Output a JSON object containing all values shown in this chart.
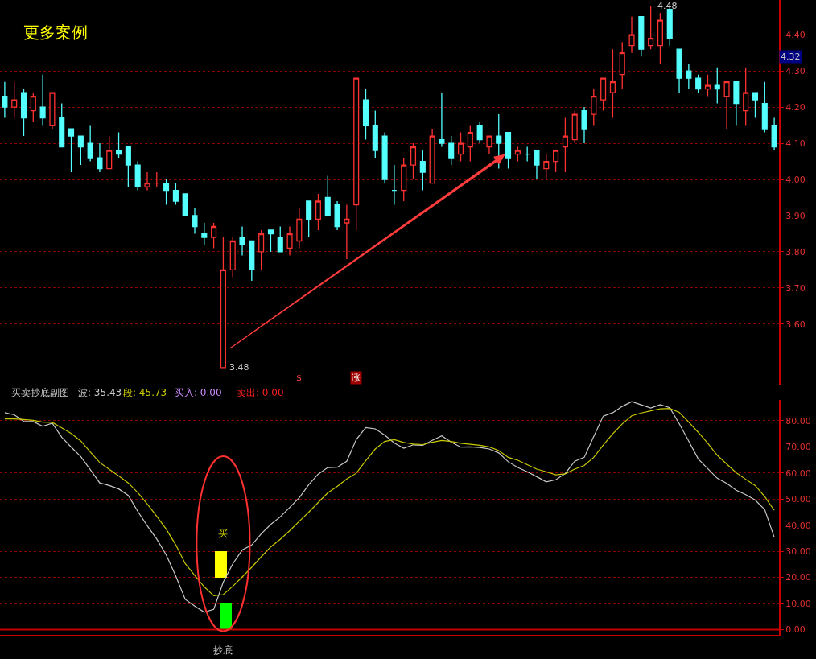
{
  "chart_data": [
    {
      "type": "candlestick",
      "title": "更多案例",
      "categories": [
        null,
        null,
        null,
        null,
        null,
        null,
        null,
        null,
        null,
        null,
        null,
        null,
        null,
        null,
        null,
        null,
        null,
        null,
        null,
        null,
        null,
        null,
        null,
        null,
        null,
        null,
        null,
        null,
        null,
        null,
        null,
        null,
        null,
        null,
        null,
        null,
        null,
        null,
        null,
        null,
        null,
        null,
        null,
        null,
        null,
        null,
        null,
        null,
        null,
        null,
        null,
        null,
        null,
        null,
        null,
        null,
        null,
        null,
        null,
        null,
        null,
        null,
        null,
        null,
        null,
        null,
        null,
        null,
        null,
        null,
        null,
        null,
        null,
        null,
        null,
        null,
        null,
        null,
        null,
        null,
        null,
        null
      ],
      "ohlc": [
        [
          4.23,
          4.27,
          4.17,
          4.2
        ],
        [
          4.2,
          4.27,
          4.17,
          4.22
        ],
        [
          4.24,
          4.25,
          4.12,
          4.17
        ],
        [
          4.19,
          4.24,
          4.16,
          4.23
        ],
        [
          4.2,
          4.29,
          4.15,
          4.17
        ],
        [
          4.15,
          4.24,
          4.14,
          4.24
        ],
        [
          4.17,
          4.21,
          4.09,
          4.09
        ],
        [
          4.14,
          4.14,
          4.02,
          4.12
        ],
        [
          4.12,
          4.12,
          4.04,
          4.09
        ],
        [
          4.1,
          4.15,
          4.05,
          4.06
        ],
        [
          4.06,
          4.1,
          4.02,
          4.03
        ],
        [
          4.03,
          4.12,
          4.03,
          4.08
        ],
        [
          4.08,
          4.13,
          4.06,
          4.07
        ],
        [
          4.09,
          4.09,
          3.98,
          4.04
        ],
        [
          4.04,
          4.05,
          3.97,
          3.98
        ],
        [
          3.98,
          4.02,
          3.97,
          3.99
        ],
        [
          3.99,
          4.02,
          3.98,
          3.99
        ],
        [
          3.99,
          4.0,
          3.93,
          3.97
        ],
        [
          3.97,
          3.99,
          3.93,
          3.94
        ],
        [
          3.96,
          3.96,
          3.9,
          3.9
        ],
        [
          3.9,
          3.92,
          3.85,
          3.87
        ],
        [
          3.85,
          3.88,
          3.82,
          3.84
        ],
        [
          3.84,
          3.88,
          3.81,
          3.87
        ],
        [
          3.48,
          3.84,
          3.48,
          3.75
        ],
        [
          3.75,
          3.84,
          3.73,
          3.83
        ],
        [
          3.84,
          3.87,
          3.79,
          3.82
        ],
        [
          3.83,
          3.83,
          3.72,
          3.75
        ],
        [
          3.8,
          3.86,
          3.75,
          3.85
        ],
        [
          3.86,
          3.86,
          3.8,
          3.85
        ],
        [
          3.84,
          3.87,
          3.8,
          3.8
        ],
        [
          3.81,
          3.87,
          3.79,
          3.85
        ],
        [
          3.83,
          3.92,
          3.81,
          3.89
        ],
        [
          3.94,
          3.94,
          3.84,
          3.89
        ],
        [
          3.89,
          3.96,
          3.86,
          3.94
        ],
        [
          3.95,
          4.01,
          3.9,
          3.9
        ],
        [
          3.93,
          3.94,
          3.86,
          3.87
        ],
        [
          3.88,
          3.93,
          3.78,
          3.89
        ],
        [
          3.93,
          4.28,
          3.86,
          4.28
        ],
        [
          4.22,
          4.25,
          4.11,
          4.15
        ],
        [
          4.15,
          4.19,
          4.06,
          4.08
        ],
        [
          4.12,
          4.13,
          3.99,
          4.0
        ],
        [
          3.97,
          4.04,
          3.93,
          3.97
        ],
        [
          3.97,
          4.06,
          3.94,
          4.04
        ],
        [
          4.04,
          4.1,
          4.0,
          4.09
        ],
        [
          4.05,
          4.08,
          3.97,
          4.02
        ],
        [
          3.99,
          4.14,
          3.99,
          4.12
        ],
        [
          4.11,
          4.24,
          4.09,
          4.1
        ],
        [
          4.1,
          4.12,
          4.04,
          4.06
        ],
        [
          4.07,
          4.13,
          4.05,
          4.1
        ],
        [
          4.09,
          4.15,
          4.05,
          4.13
        ],
        [
          4.15,
          4.16,
          4.1,
          4.11
        ],
        [
          4.09,
          4.12,
          4.07,
          4.12
        ],
        [
          4.12,
          4.18,
          4.03,
          4.1
        ],
        [
          4.13,
          4.13,
          4.03,
          4.06
        ],
        [
          4.07,
          4.09,
          4.05,
          4.08
        ],
        [
          4.07,
          4.09,
          4.05,
          4.07
        ],
        [
          4.08,
          4.08,
          4.0,
          4.04
        ],
        [
          4.03,
          4.07,
          4.0,
          4.05
        ],
        [
          4.05,
          4.08,
          4.02,
          4.08
        ],
        [
          4.09,
          4.17,
          4.02,
          4.12
        ],
        [
          4.11,
          4.19,
          4.1,
          4.18
        ],
        [
          4.19,
          4.2,
          4.1,
          4.14
        ],
        [
          4.18,
          4.25,
          4.15,
          4.23
        ],
        [
          4.22,
          4.28,
          4.19,
          4.28
        ],
        [
          4.24,
          4.36,
          4.17,
          4.27
        ],
        [
          4.29,
          4.38,
          4.25,
          4.35
        ],
        [
          4.37,
          4.45,
          4.35,
          4.4
        ],
        [
          4.45,
          4.45,
          4.34,
          4.36
        ],
        [
          4.37,
          4.48,
          4.36,
          4.39
        ],
        [
          4.37,
          4.46,
          4.32,
          4.44
        ],
        [
          4.47,
          4.47,
          4.37,
          4.39
        ],
        [
          4.36,
          4.36,
          4.24,
          4.28
        ],
        [
          4.3,
          4.32,
          4.25,
          4.28
        ],
        [
          4.28,
          4.29,
          4.24,
          4.25
        ],
        [
          4.25,
          4.29,
          4.23,
          4.26
        ],
        [
          4.26,
          4.31,
          4.21,
          4.25
        ],
        [
          4.23,
          4.27,
          4.14,
          4.27
        ],
        [
          4.27,
          4.27,
          4.15,
          4.21
        ],
        [
          4.19,
          4.31,
          4.15,
          4.24
        ],
        [
          4.24,
          4.24,
          4.17,
          4.22
        ],
        [
          4.21,
          4.27,
          4.13,
          4.14
        ],
        [
          4.15,
          4.17,
          4.08,
          4.09
        ]
      ],
      "ylim": [
        3.433,
        4.496
      ],
      "yticks": [
        {
          "value": 3.6,
          "label": "3.60"
        },
        {
          "value": 3.7,
          "label": "3.70"
        },
        {
          "value": 3.8,
          "label": "3.80"
        },
        {
          "value": 3.9,
          "label": "3.90"
        },
        {
          "value": 4.0,
          "label": "4.00"
        },
        {
          "value": 4.1,
          "label": "4.10"
        },
        {
          "value": 4.2,
          "label": "4.20"
        },
        {
          "value": 4.3,
          "label": "4.30"
        },
        {
          "value": 4.4,
          "label": "4.40"
        }
      ],
      "grid": "y",
      "tick_labels": "y",
      "annotations": [
        "$",
        "涨",
        "3.48",
        {
          "text": "4.48",
          "y": 4.48
        },
        "4.32"
      ]
    },
    {
      "type": "line",
      "title": "买卖抄底副图",
      "categories": [
        null,
        null,
        null,
        null,
        null,
        null,
        null,
        null,
        null,
        null,
        null,
        null,
        null,
        null,
        null,
        null,
        null,
        null,
        null,
        null,
        null,
        null,
        null,
        null,
        null,
        null,
        null,
        null,
        null,
        null,
        null,
        null,
        null,
        null,
        null,
        null,
        null,
        null,
        null,
        null,
        null,
        null,
        null,
        null,
        null,
        null,
        null,
        null,
        null,
        null,
        null,
        null,
        null,
        null,
        null,
        null,
        null,
        null,
        null,
        null,
        null,
        null,
        null,
        null,
        null,
        null,
        null,
        null,
        null,
        null,
        null,
        null,
        null,
        null,
        null,
        null,
        null,
        null,
        null,
        null,
        null,
        null
      ],
      "series": [
        {
          "name": "波: 35.43",
          "color": "#c8c8c8",
          "values": [
            83.1,
            82.3,
            79.8,
            79.7,
            77.9,
            79.1,
            73.7,
            69.9,
            66.3,
            61.3,
            56.2,
            55.2,
            53.9,
            51.4,
            45.3,
            39.8,
            34.7,
            28.6,
            20.6,
            11.6,
            9.0,
            6.7,
            7.8,
            18.2,
            25.2,
            30.5,
            32.4,
            36.7,
            40.3,
            43.2,
            46.8,
            50.5,
            55.5,
            59.6,
            62.1,
            62.2,
            64.5,
            72.8,
            77.4,
            76.9,
            74.5,
            71.5,
            69.5,
            70.8,
            70.6,
            72.5,
            74.2,
            71.8,
            69.9,
            70.0,
            69.8,
            69.2,
            67.7,
            64.3,
            62.1,
            60.5,
            58.6,
            56.6,
            57.4,
            59.8,
            64.5,
            66.0,
            74.0,
            81.8,
            83.1,
            85.5,
            87.3,
            86.1,
            84.9,
            86.2,
            85.0,
            78.9,
            72.2,
            65.4,
            61.7,
            58.0,
            56.0,
            53.4,
            51.7,
            49.6,
            46.0,
            35.4
          ]
        },
        {
          "name": "段: 45.73",
          "color": "#c8c800",
          "values": [
            80.7,
            80.7,
            80.5,
            80.2,
            79.5,
            79.4,
            77.3,
            75.1,
            72.3,
            68.1,
            64.0,
            61.4,
            58.9,
            56.2,
            52.5,
            48.1,
            43.4,
            38.5,
            32.5,
            25.3,
            20.8,
            16.4,
            13.0,
            13.4,
            16.6,
            20.2,
            23.9,
            27.9,
            31.7,
            34.6,
            37.9,
            41.5,
            45.0,
            48.7,
            52.4,
            54.9,
            57.7,
            59.9,
            64.7,
            69.2,
            72.1,
            72.8,
            71.7,
            71.1,
            70.9,
            71.8,
            72.5,
            72.1,
            71.4,
            71.0,
            70.6,
            70.0,
            68.6,
            66.0,
            64.9,
            63.2,
            61.5,
            60.5,
            59.3,
            59.7,
            61.5,
            62.9,
            66.0,
            70.7,
            75.0,
            78.8,
            81.9,
            83.0,
            83.8,
            84.6,
            84.7,
            83.2,
            79.5,
            75.6,
            71.4,
            66.8,
            63.4,
            60.1,
            57.6,
            55.2,
            51.0,
            45.7
          ]
        },
        {
          "type": "bar",
          "color": "#ffff00",
          "values": [
            null,
            null,
            null,
            null,
            null,
            null,
            null,
            null,
            null,
            null,
            null,
            null,
            null,
            null,
            null,
            null,
            null,
            null,
            null,
            null,
            null,
            null,
            null,
            10,
            null,
            null,
            null,
            null,
            null,
            null,
            null,
            null,
            null,
            null,
            null,
            null,
            null,
            null,
            null,
            null,
            null,
            null,
            null,
            null,
            null,
            null,
            null,
            null,
            null,
            null,
            null,
            null,
            null,
            null,
            null,
            null,
            null,
            null,
            null,
            null,
            null,
            null,
            null,
            null,
            null,
            null,
            null,
            null,
            null,
            null,
            null,
            null,
            null,
            null,
            null,
            null,
            null,
            null,
            null,
            null,
            null,
            null
          ],
          "base": [
            null,
            null,
            null,
            null,
            null,
            null,
            null,
            null,
            null,
            null,
            null,
            null,
            null,
            null,
            null,
            null,
            null,
            null,
            null,
            null,
            null,
            null,
            null,
            20,
            null,
            null,
            null,
            null,
            null,
            null,
            null,
            null,
            null,
            null,
            null,
            null,
            null,
            null,
            null,
            null,
            null,
            null,
            null,
            null,
            null,
            null,
            null,
            null,
            null,
            null,
            null,
            null,
            null,
            null,
            null,
            null,
            null,
            null,
            null,
            null,
            null,
            null,
            null,
            null,
            null,
            null,
            null,
            null,
            null,
            null,
            null,
            null,
            null,
            null,
            null,
            null,
            null,
            null,
            null,
            null,
            null,
            null
          ]
        },
        {
          "type": "bar",
          "color": "#00ff00",
          "values": [
            null,
            null,
            null,
            null,
            null,
            null,
            null,
            null,
            null,
            null,
            null,
            null,
            null,
            null,
            null,
            null,
            null,
            null,
            null,
            null,
            null,
            null,
            null,
            10,
            null,
            null,
            null,
            null,
            null,
            null,
            null,
            null,
            null,
            null,
            null,
            null,
            null,
            null,
            null,
            null,
            null,
            null,
            null,
            null,
            null,
            null,
            null,
            null,
            null,
            null,
            null,
            null,
            null,
            null,
            null,
            null,
            null,
            null,
            null,
            null,
            null,
            null,
            null,
            null,
            null,
            null,
            null,
            null,
            null,
            null,
            null,
            null,
            null,
            null,
            null,
            null,
            null,
            null,
            null,
            null,
            null,
            null
          ],
          "base": [
            null,
            null,
            null,
            null,
            null,
            null,
            null,
            null,
            null,
            null,
            null,
            null,
            null,
            null,
            null,
            null,
            null,
            null,
            null,
            null,
            null,
            null,
            null,
            0,
            null,
            null,
            null,
            null,
            null,
            null,
            null,
            null,
            null,
            null,
            null,
            null,
            null,
            null,
            null,
            null,
            null,
            null,
            null,
            null,
            null,
            null,
            null,
            null,
            null,
            null,
            null,
            null,
            null,
            null,
            null,
            null,
            null,
            null,
            null,
            null,
            null,
            null,
            null,
            null,
            null,
            null,
            null,
            null,
            null,
            null,
            null,
            null,
            null,
            null,
            null,
            null,
            null,
            null,
            null,
            null,
            null,
            null
          ]
        }
      ],
      "ylim": [
        -2,
        88
      ],
      "yticks": [
        {
          "value": 0,
          "label": "0.00"
        },
        {
          "value": 10,
          "label": "10.00"
        },
        {
          "value": 20,
          "label": "20.00"
        },
        {
          "value": 30,
          "label": "30.00"
        },
        {
          "value": 40,
          "label": "40.00"
        },
        {
          "value": 50,
          "label": "50.00"
        },
        {
          "value": 60,
          "label": "60.00"
        },
        {
          "value": 70,
          "label": "70.00"
        },
        {
          "value": 80,
          "label": "80.00"
        }
      ],
      "grid": "y",
      "tick_labels": "y",
      "ref_lines": [
        {
          "axis": "y",
          "value": 0,
          "color": "#c80000"
        }
      ],
      "annotations": [
        "买入: 0.00",
        "卖出: 0.00",
        "买",
        "抄底"
      ]
    }
  ]
}
